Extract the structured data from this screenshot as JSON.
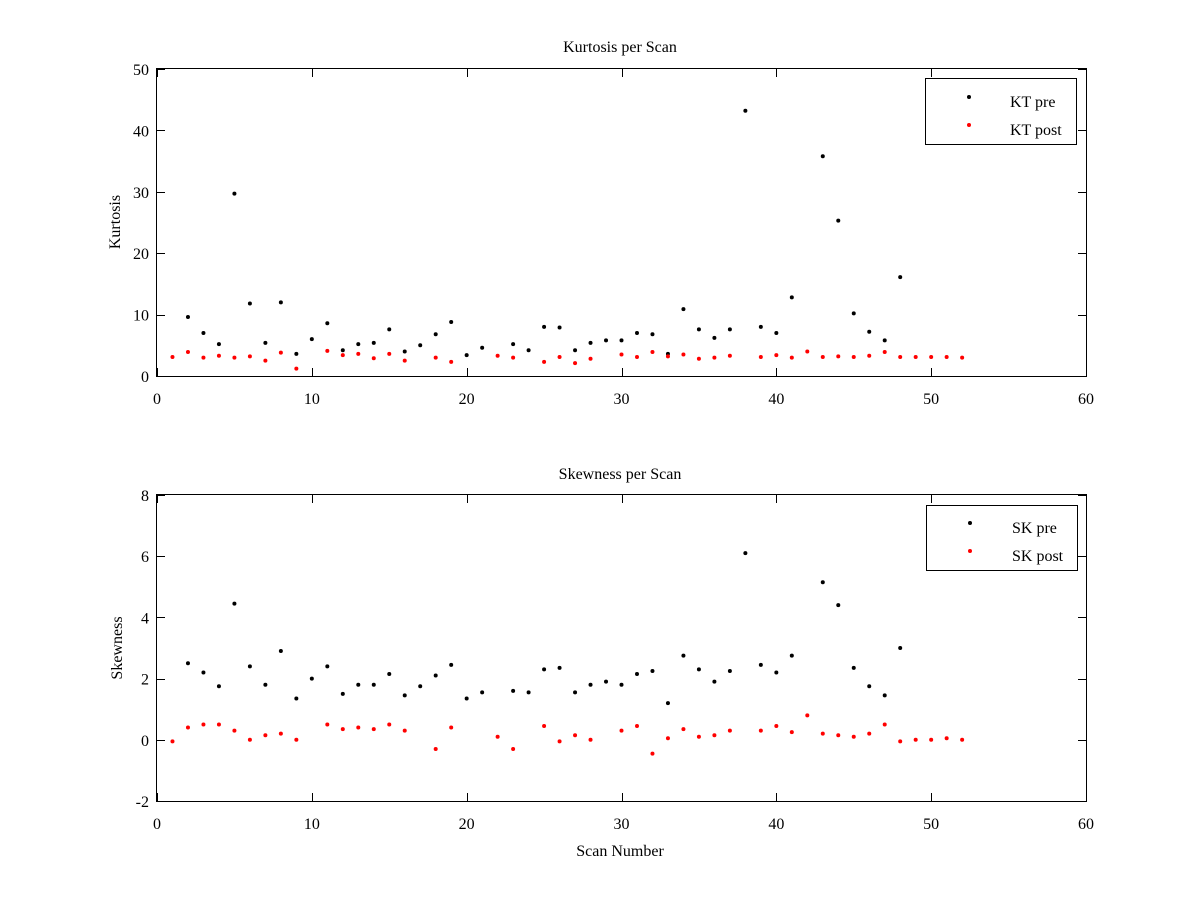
{
  "chart_data": [
    {
      "type": "scatter",
      "title": "Kurtosis per Scan",
      "xlabel": "",
      "ylabel": "Kurtosis",
      "xlim": [
        0,
        60
      ],
      "ylim": [
        0,
        50
      ],
      "xticks": [
        0,
        10,
        20,
        30,
        40,
        50,
        60
      ],
      "yticks": [
        0,
        10,
        20,
        30,
        40,
        50
      ],
      "grid": false,
      "legend_position": "top-right",
      "series": [
        {
          "name": "KT pre",
          "color": "#000000",
          "x": [
            2,
            3,
            4,
            5,
            6,
            7,
            8,
            9,
            10,
            11,
            12,
            13,
            14,
            15,
            16,
            17,
            18,
            19,
            20,
            21,
            23,
            24,
            25,
            26,
            27,
            28,
            29,
            30,
            31,
            32,
            33,
            34,
            35,
            36,
            37,
            38,
            39,
            40,
            41,
            43,
            44,
            45,
            46,
            47,
            48
          ],
          "y": [
            9.6,
            7.0,
            5.2,
            29.7,
            11.8,
            5.4,
            12.0,
            3.6,
            6.0,
            8.6,
            4.2,
            5.2,
            5.4,
            7.6,
            4.0,
            5.0,
            6.8,
            8.8,
            3.4,
            4.6,
            5.2,
            4.2,
            8.0,
            7.9,
            4.2,
            5.4,
            5.8,
            5.8,
            7.0,
            6.8,
            3.6,
            10.9,
            7.6,
            6.2,
            7.6,
            43.2,
            8.0,
            7.0,
            12.8,
            35.8,
            25.3,
            10.2,
            7.2,
            5.8,
            16.1
          ]
        },
        {
          "name": "KT post",
          "color": "#ff0000",
          "x": [
            1,
            2,
            3,
            4,
            5,
            6,
            7,
            8,
            9,
            11,
            12,
            13,
            14,
            15,
            16,
            18,
            19,
            22,
            23,
            25,
            26,
            27,
            28,
            30,
            31,
            32,
            33,
            34,
            35,
            36,
            37,
            39,
            40,
            41,
            42,
            43,
            44,
            45,
            46,
            47,
            48,
            49,
            50,
            51,
            52
          ],
          "y": [
            3.1,
            3.9,
            3.0,
            3.3,
            3.0,
            3.2,
            2.5,
            3.8,
            1.2,
            4.1,
            3.4,
            3.6,
            2.9,
            3.6,
            2.5,
            3.0,
            2.3,
            3.3,
            3.0,
            2.3,
            3.1,
            2.1,
            2.8,
            3.5,
            3.1,
            3.9,
            3.2,
            3.5,
            2.8,
            3.0,
            3.3,
            3.1,
            3.4,
            3.0,
            4.0,
            3.1,
            3.2,
            3.1,
            3.3,
            3.9,
            3.1,
            3.1,
            3.1,
            3.1,
            3.0
          ]
        }
      ]
    },
    {
      "type": "scatter",
      "title": "Skewness per Scan",
      "xlabel": "Scan Number",
      "ylabel": "Skewness",
      "xlim": [
        0,
        60
      ],
      "ylim": [
        -2,
        8
      ],
      "xticks": [
        0,
        10,
        20,
        30,
        40,
        50,
        60
      ],
      "yticks": [
        -2,
        0,
        2,
        4,
        6,
        8
      ],
      "grid": false,
      "legend_position": "top-right",
      "series": [
        {
          "name": "SK pre",
          "color": "#000000",
          "x": [
            2,
            3,
            4,
            5,
            6,
            7,
            8,
            9,
            10,
            11,
            12,
            13,
            14,
            15,
            16,
            17,
            18,
            19,
            20,
            21,
            23,
            24,
            25,
            26,
            27,
            28,
            29,
            30,
            31,
            32,
            33,
            34,
            35,
            36,
            37,
            38,
            39,
            40,
            41,
            43,
            44,
            45,
            46,
            47,
            48
          ],
          "y": [
            2.5,
            2.2,
            1.75,
            4.45,
            2.4,
            1.8,
            2.9,
            1.35,
            2.0,
            2.4,
            1.5,
            1.8,
            1.8,
            2.15,
            1.45,
            1.75,
            2.1,
            2.45,
            1.35,
            1.55,
            1.6,
            1.55,
            2.3,
            2.35,
            1.55,
            1.8,
            1.9,
            1.8,
            2.15,
            2.25,
            1.2,
            2.75,
            2.3,
            1.9,
            2.25,
            6.1,
            2.45,
            2.2,
            2.75,
            5.15,
            4.4,
            2.35,
            1.75,
            1.45,
            3.0
          ]
        },
        {
          "name": "SK post",
          "color": "#ff0000",
          "x": [
            1,
            2,
            3,
            4,
            5,
            6,
            7,
            8,
            9,
            11,
            12,
            13,
            14,
            15,
            16,
            18,
            19,
            22,
            23,
            25,
            26,
            27,
            28,
            30,
            31,
            32,
            33,
            34,
            35,
            36,
            37,
            39,
            40,
            41,
            42,
            43,
            44,
            45,
            46,
            47,
            48,
            49,
            50,
            51,
            52
          ],
          "y": [
            -0.05,
            0.4,
            0.5,
            0.5,
            0.3,
            0.0,
            0.15,
            0.2,
            0.0,
            0.5,
            0.35,
            0.4,
            0.35,
            0.5,
            0.3,
            -0.3,
            0.4,
            0.1,
            -0.3,
            0.45,
            -0.05,
            0.15,
            0.0,
            0.3,
            0.45,
            -0.45,
            0.05,
            0.35,
            0.1,
            0.15,
            0.3,
            0.3,
            0.45,
            0.25,
            0.8,
            0.2,
            0.15,
            0.1,
            0.2,
            0.5,
            -0.05,
            0.0,
            0.0,
            0.05,
            0.0
          ]
        }
      ]
    }
  ]
}
